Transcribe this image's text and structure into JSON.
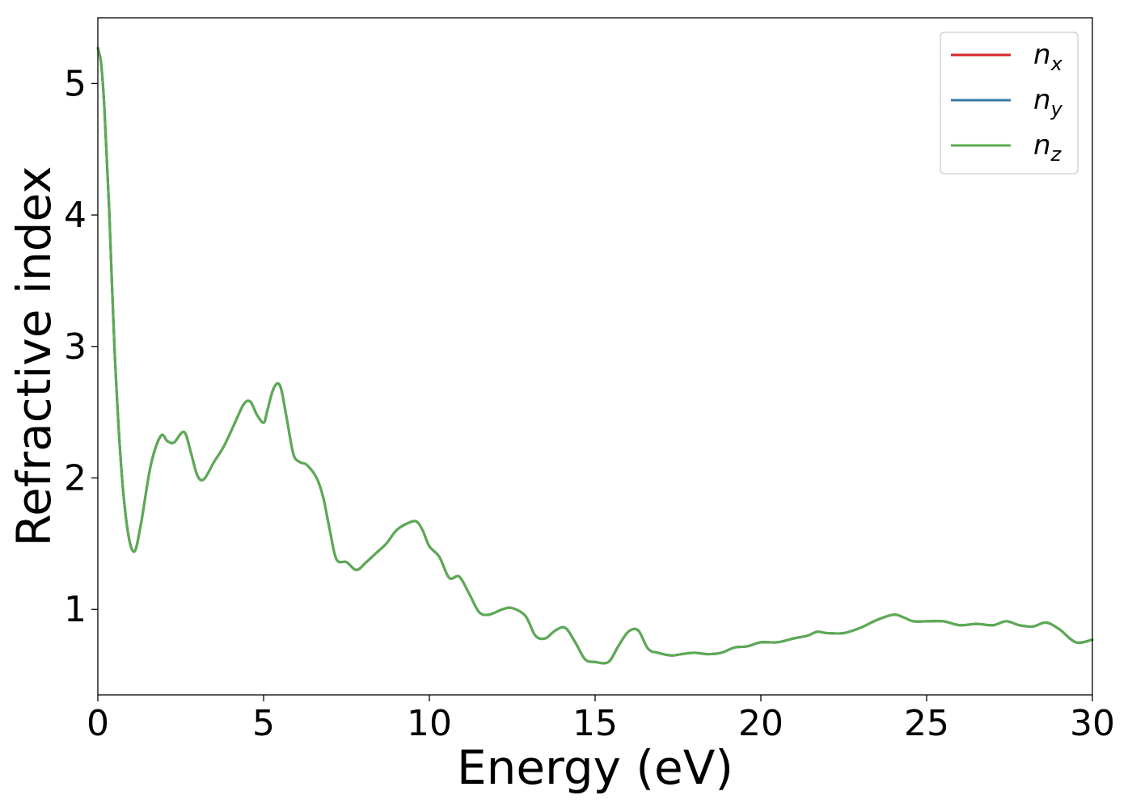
{
  "chart_data": {
    "type": "line",
    "xlabel": "Energy (eV)",
    "ylabel": "Refractive index",
    "xlim": [
      0,
      30
    ],
    "ylim": [
      0.35,
      5.5
    ],
    "xticks": [
      "0",
      "5",
      "10",
      "15",
      "20",
      "25",
      "30"
    ],
    "yticks": [
      "1",
      "2",
      "3",
      "4",
      "5"
    ],
    "grid": false,
    "legend_position": "top-right",
    "series": [
      {
        "name": "n",
        "subscript": "x",
        "color": "#d62728",
        "dataset": "n"
      },
      {
        "name": "n",
        "subscript": "y",
        "color": "#3a78a6",
        "dataset": "n"
      },
      {
        "name": "n",
        "subscript": "z",
        "color": "#5aac52",
        "dataset": "n"
      }
    ],
    "datasets": {
      "n": {
        "x": [
          0,
          0.1,
          0.2,
          0.35,
          0.5,
          0.7,
          0.9,
          1.1,
          1.3,
          1.6,
          1.9,
          2.1,
          2.3,
          2.6,
          2.8,
          3.0,
          3.2,
          3.5,
          3.8,
          4.1,
          4.4,
          4.6,
          4.8,
          5.0,
          5.1,
          5.3,
          5.5,
          5.7,
          5.9,
          6.1,
          6.3,
          6.6,
          6.8,
          7.0,
          7.2,
          7.5,
          7.8,
          8.1,
          8.4,
          8.7,
          9.0,
          9.3,
          9.6,
          9.8,
          10.0,
          10.3,
          10.6,
          10.9,
          11.2,
          11.5,
          11.8,
          12.2,
          12.5,
          12.9,
          13.2,
          13.5,
          13.8,
          14.1,
          14.4,
          14.7,
          15.0,
          15.4,
          15.7,
          16.0,
          16.3,
          16.6,
          16.9,
          17.3,
          17.6,
          18.0,
          18.4,
          18.8,
          19.2,
          19.6,
          20.0,
          20.5,
          21.0,
          21.4,
          21.7,
          22.0,
          22.5,
          23.0,
          23.5,
          24.0,
          24.3,
          24.6,
          25.0,
          25.5,
          26.0,
          26.5,
          27.0,
          27.4,
          27.8,
          28.2,
          28.6,
          29.0,
          29.5,
          30.0
        ],
        "y": [
          5.27,
          5.15,
          4.8,
          4.0,
          3.0,
          2.1,
          1.6,
          1.44,
          1.65,
          2.1,
          2.32,
          2.28,
          2.27,
          2.35,
          2.2,
          2.02,
          1.99,
          2.12,
          2.24,
          2.4,
          2.56,
          2.58,
          2.48,
          2.42,
          2.5,
          2.68,
          2.7,
          2.45,
          2.18,
          2.12,
          2.1,
          2.0,
          1.85,
          1.6,
          1.38,
          1.36,
          1.3,
          1.36,
          1.43,
          1.5,
          1.6,
          1.65,
          1.67,
          1.6,
          1.48,
          1.4,
          1.24,
          1.25,
          1.12,
          0.98,
          0.96,
          1.0,
          1.01,
          0.95,
          0.8,
          0.78,
          0.84,
          0.86,
          0.75,
          0.62,
          0.6,
          0.6,
          0.72,
          0.83,
          0.84,
          0.7,
          0.67,
          0.65,
          0.66,
          0.67,
          0.66,
          0.67,
          0.71,
          0.72,
          0.75,
          0.75,
          0.78,
          0.8,
          0.83,
          0.82,
          0.82,
          0.86,
          0.92,
          0.96,
          0.94,
          0.91,
          0.91,
          0.91,
          0.88,
          0.89,
          0.88,
          0.91,
          0.88,
          0.87,
          0.9,
          0.85,
          0.75,
          0.77
        ]
      }
    }
  }
}
